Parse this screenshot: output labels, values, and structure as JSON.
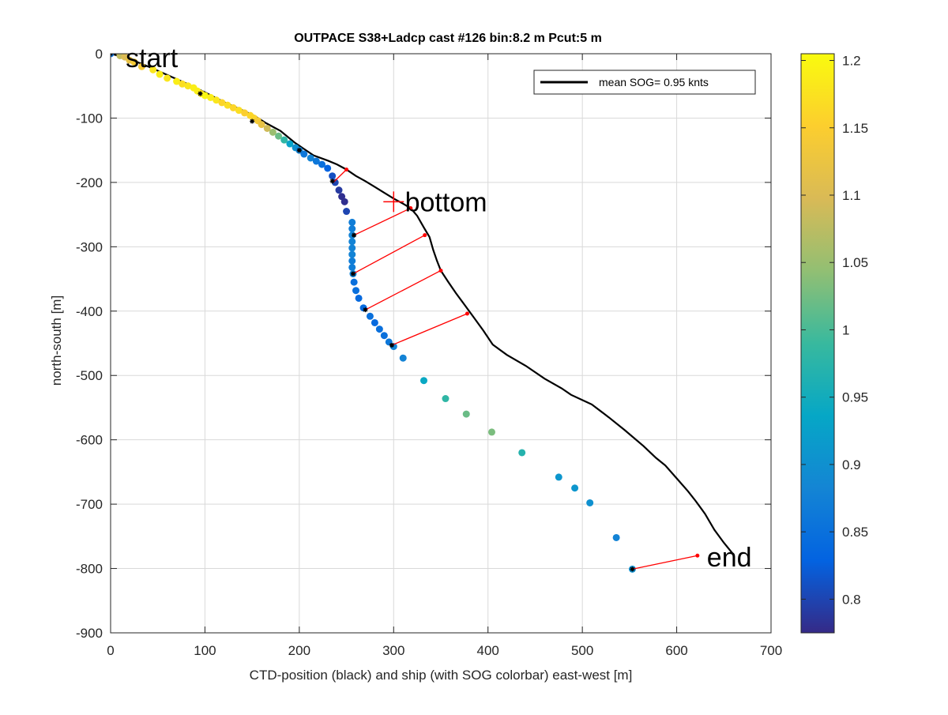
{
  "chart_data": {
    "type": "scatter",
    "title": "OUTPACE S38+Ladcp cast #126 bin:8.2 m  Pcut:5 m",
    "xlabel": "CTD-position (black) and ship (with SOG colorbar) east-west [m]",
    "ylabel": "north-south [m]",
    "xlim": [
      0,
      700
    ],
    "ylim": [
      -900,
      0
    ],
    "x_ticks": [
      0,
      100,
      200,
      300,
      400,
      500,
      600,
      700
    ],
    "y_ticks": [
      0,
      -100,
      -200,
      -300,
      -400,
      -500,
      -600,
      -700,
      -800,
      -900
    ],
    "x_tick_labels": [
      "0",
      "100",
      "200",
      "300",
      "400",
      "500",
      "600",
      "700"
    ],
    "y_tick_labels": [
      "0",
      "-100",
      "-200",
      "-300",
      "-400",
      "-500",
      "-600",
      "-700",
      "-800",
      "-900"
    ],
    "grid": true,
    "legend": {
      "position": "top-right",
      "entries": [
        {
          "label": "mean SOG=  0.95 knts",
          "color": "#000000"
        }
      ]
    },
    "colorbar": {
      "range": [
        0.775,
        1.205
      ],
      "ticks": [
        0.8,
        0.85,
        0.9,
        0.95,
        1,
        1.05,
        1.1,
        1.15,
        1.2
      ],
      "tick_labels": [
        "0.8",
        "0.85",
        "0.9",
        "0.95",
        "1",
        "1.05",
        "1.1",
        "1.15",
        "1.2"
      ]
    },
    "ctd_track": {
      "color": "#000000",
      "points": [
        [
          0,
          0
        ],
        [
          8,
          -3
        ],
        [
          20,
          -8
        ],
        [
          40,
          -20
        ],
        [
          60,
          -33
        ],
        [
          80,
          -46
        ],
        [
          100,
          -60
        ],
        [
          120,
          -75
        ],
        [
          140,
          -88
        ],
        [
          152,
          -96
        ],
        [
          165,
          -108
        ],
        [
          180,
          -120
        ],
        [
          195,
          -138
        ],
        [
          205,
          -148
        ],
        [
          215,
          -158
        ],
        [
          230,
          -166
        ],
        [
          240,
          -172
        ],
        [
          250,
          -180
        ],
        [
          260,
          -190
        ],
        [
          270,
          -198
        ],
        [
          280,
          -207
        ],
        [
          290,
          -216
        ],
        [
          300,
          -225
        ],
        [
          310,
          -233
        ],
        [
          318,
          -240
        ],
        [
          325,
          -252
        ],
        [
          332,
          -270
        ],
        [
          338,
          -285
        ],
        [
          342,
          -305
        ],
        [
          346,
          -322
        ],
        [
          350,
          -337
        ],
        [
          358,
          -355
        ],
        [
          366,
          -372
        ],
        [
          375,
          -390
        ],
        [
          385,
          -410
        ],
        [
          395,
          -430
        ],
        [
          405,
          -452
        ],
        [
          420,
          -468
        ],
        [
          440,
          -485
        ],
        [
          460,
          -505
        ],
        [
          478,
          -520
        ],
        [
          488,
          -530
        ],
        [
          510,
          -545
        ],
        [
          528,
          -565
        ],
        [
          545,
          -585
        ],
        [
          565,
          -610
        ],
        [
          578,
          -628
        ],
        [
          588,
          -640
        ],
        [
          600,
          -660
        ],
        [
          612,
          -680
        ],
        [
          620,
          -695
        ],
        [
          630,
          -715
        ],
        [
          640,
          -740
        ],
        [
          650,
          -760
        ],
        [
          660,
          -778
        ]
      ]
    },
    "ship_positions": {
      "points": [
        [
          0,
          0,
          0.85
        ],
        [
          10,
          -3,
          1.08
        ],
        [
          15,
          -5,
          1.1
        ],
        [
          20,
          -10,
          1.12
        ],
        [
          25,
          -13,
          1.14
        ],
        [
          33,
          -20,
          1.14
        ],
        [
          45,
          -25,
          1.18
        ],
        [
          52,
          -32,
          1.19
        ],
        [
          60,
          -38,
          1.18
        ],
        [
          70,
          -43,
          1.19
        ],
        [
          76,
          -47,
          1.17
        ],
        [
          82,
          -50,
          1.18
        ],
        [
          88,
          -53,
          1.19
        ],
        [
          92,
          -58,
          1.19
        ],
        [
          96,
          -62,
          1.18
        ],
        [
          100,
          -65,
          1.2
        ],
        [
          106,
          -68,
          1.19
        ],
        [
          112,
          -72,
          1.18
        ],
        [
          118,
          -76,
          1.16
        ],
        [
          124,
          -80,
          1.17
        ],
        [
          130,
          -84,
          1.16
        ],
        [
          136,
          -88,
          1.17
        ],
        [
          142,
          -92,
          1.15
        ],
        [
          148,
          -96,
          1.16
        ],
        [
          152,
          -100,
          1.16
        ],
        [
          156,
          -104,
          1.14
        ],
        [
          160,
          -110,
          1.12
        ],
        [
          166,
          -116,
          1.09
        ],
        [
          172,
          -122,
          1.05
        ],
        [
          178,
          -128,
          1.02
        ],
        [
          184,
          -134,
          0.98
        ],
        [
          190,
          -140,
          0.93
        ],
        [
          196,
          -146,
          0.9
        ],
        [
          200,
          -150,
          0.88
        ],
        [
          205,
          -156,
          0.86
        ],
        [
          212,
          -162,
          0.88
        ],
        [
          218,
          -167,
          0.86
        ],
        [
          224,
          -172,
          0.85
        ],
        [
          230,
          -178,
          0.83
        ],
        [
          235,
          -190,
          0.81
        ],
        [
          238,
          -200,
          0.8
        ],
        [
          242,
          -212,
          0.79
        ],
        [
          245,
          -222,
          0.78
        ],
        [
          248,
          -230,
          0.78
        ],
        [
          250,
          -245,
          0.8
        ],
        [
          256,
          -262,
          0.87
        ],
        [
          256,
          -272,
          0.87
        ],
        [
          256,
          -282,
          0.88
        ],
        [
          256,
          -292,
          0.88
        ],
        [
          256,
          -302,
          0.88
        ],
        [
          256,
          -312,
          0.88
        ],
        [
          256,
          -322,
          0.87
        ],
        [
          256,
          -332,
          0.87
        ],
        [
          257,
          -342,
          0.88
        ],
        [
          258,
          -355,
          0.85
        ],
        [
          260,
          -368,
          0.85
        ],
        [
          263,
          -380,
          0.84
        ],
        [
          268,
          -395,
          0.84
        ],
        [
          275,
          -408,
          0.85
        ],
        [
          280,
          -418,
          0.84
        ],
        [
          285,
          -428,
          0.85
        ],
        [
          290,
          -438,
          0.85
        ],
        [
          295,
          -448,
          0.86
        ],
        [
          300,
          -455,
          0.88
        ],
        [
          310,
          -473,
          0.88
        ],
        [
          332,
          -508,
          0.94
        ],
        [
          355,
          -536,
          0.98
        ],
        [
          377,
          -560,
          1.02
        ],
        [
          404,
          -588,
          1.03
        ],
        [
          436,
          -620,
          0.97
        ],
        [
          475,
          -658,
          0.91
        ],
        [
          492,
          -675,
          0.91
        ],
        [
          508,
          -698,
          0.9
        ],
        [
          536,
          -752,
          0.88
        ],
        [
          553,
          -801,
          0.9
        ]
      ]
    },
    "connectors": [
      [
        [
          236,
          -200
        ],
        [
          250,
          -180
        ]
      ],
      [
        [
          258,
          -282
        ],
        [
          318,
          -240
        ]
      ],
      [
        [
          257,
          -342
        ],
        [
          333,
          -282
        ]
      ],
      [
        [
          270,
          -398
        ],
        [
          350,
          -337
        ]
      ],
      [
        [
          298,
          -453
        ],
        [
          378,
          -404
        ]
      ],
      [
        [
          553,
          -801
        ],
        [
          622,
          -780
        ]
      ]
    ],
    "black_markers": [
      [
        0,
        0
      ],
      [
        95,
        -62
      ],
      [
        150,
        -105
      ],
      [
        200,
        -150
      ],
      [
        235,
        -198
      ],
      [
        258,
        -282
      ],
      [
        257,
        -342
      ],
      [
        270,
        -398
      ],
      [
        298,
        -453
      ],
      [
        553,
        -801
      ]
    ],
    "annotations": [
      {
        "text": "start",
        "x": 16,
        "y": -6,
        "anchor": "start"
      },
      {
        "text": "bottom",
        "x": 312,
        "y": -230,
        "anchor": "start"
      },
      {
        "text": "end",
        "x": 632,
        "y": -782,
        "anchor": "start"
      }
    ],
    "bottom_marker": {
      "x": 300,
      "y": -230,
      "color": "#ff0000"
    }
  }
}
